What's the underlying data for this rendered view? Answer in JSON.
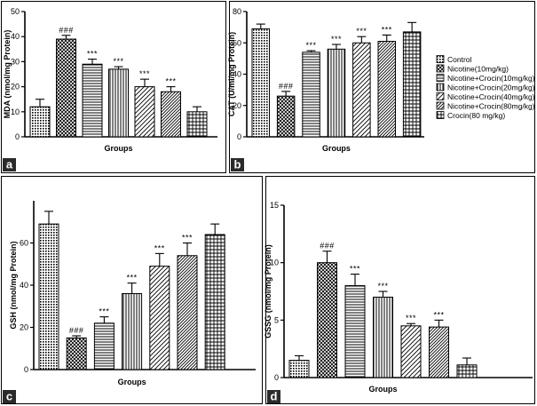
{
  "colors": {
    "background": "#ffffff",
    "ink": "#000000",
    "panel_label_bg": "#2b2b2b"
  },
  "legend": {
    "entries": [
      "Control",
      "Nicotine(10mg/kg)",
      "Nicotine+Crocin(10mg/kg)",
      "Nicotine+Crocin(20mg/kg)",
      "Nicotine+Crocin(40mg/kg)",
      "Nicotine+Crocin(80mg/kg)",
      "Crocin(80 mg/kg)"
    ],
    "patterns": [
      "dots",
      "crosshatch",
      "hlines",
      "vlines",
      "diag",
      "diag-dense",
      "grid"
    ]
  },
  "chart_data": [
    {
      "panel": "a",
      "type": "bar",
      "title": "",
      "xlabel": "Groups",
      "ylabel": "MDA (nmol/mg Protein)",
      "ylim": [
        0,
        50
      ],
      "yticks": [
        0,
        10,
        20,
        30,
        40,
        50
      ],
      "categories": [
        "Control",
        "Nicotine(10mg/kg)",
        "Nicotine+Crocin(10mg/kg)",
        "Nicotine+Crocin(20mg/kg)",
        "Nicotine+Crocin(40mg/kg)",
        "Nicotine+Crocin(80mg/kg)",
        "Crocin(80 mg/kg)"
      ],
      "values": [
        12,
        39,
        29,
        27,
        20,
        18,
        10
      ],
      "errors": [
        3,
        1.5,
        2,
        1,
        3,
        2,
        2
      ],
      "annotations": [
        "",
        "###",
        "***",
        "***",
        "***",
        "***",
        ""
      ]
    },
    {
      "panel": "b",
      "type": "bar",
      "title": "",
      "xlabel": "Groups",
      "ylabel": "CAT (U/ml/mg Protein)",
      "ylim": [
        0,
        80
      ],
      "yticks": [
        0,
        20,
        40,
        60,
        80
      ],
      "categories": [
        "Control",
        "Nicotine(10mg/kg)",
        "Nicotine+Crocin(10mg/kg)",
        "Nicotine+Crocin(20mg/kg)",
        "Nicotine+Crocin(40mg/kg)",
        "Nicotine+Crocin(80mg/kg)",
        "Crocin(80 mg/kg)"
      ],
      "values": [
        69,
        26,
        54,
        56,
        60,
        61,
        67
      ],
      "errors": [
        3,
        3,
        1,
        3,
        4,
        4,
        6
      ],
      "annotations": [
        "",
        "###",
        "***",
        "***",
        "***",
        "***",
        ""
      ]
    },
    {
      "panel": "c",
      "type": "bar",
      "title": "",
      "xlabel": "Groups",
      "ylabel": "GSH (nmol/mg Protein)",
      "ylim": [
        0,
        80
      ],
      "yticks": [
        0,
        20,
        40,
        60
      ],
      "categories": [
        "Control",
        "Nicotine(10mg/kg)",
        "Nicotine+Crocin(10mg/kg)",
        "Nicotine+Crocin(20mg/kg)",
        "Nicotine+Crocin(40mg/kg)",
        "Nicotine+Crocin(80mg/kg)",
        "Crocin(80 mg/kg)"
      ],
      "values": [
        69,
        15,
        22,
        36,
        49,
        54,
        64
      ],
      "errors": [
        6,
        1,
        3,
        5,
        6,
        6,
        5
      ],
      "annotations": [
        "",
        "###",
        "***",
        "***",
        "***",
        "***",
        ""
      ]
    },
    {
      "panel": "d",
      "type": "bar",
      "title": "",
      "xlabel": "Groups",
      "ylabel": "GSSG (nmol/mg Protein)",
      "ylim": [
        0,
        15
      ],
      "yticks": [
        0,
        5,
        10,
        15
      ],
      "categories": [
        "Control",
        "Nicotine(10mg/kg)",
        "Nicotine+Crocin(10mg/kg)",
        "Nicotine+Crocin(20mg/kg)",
        "Nicotine+Crocin(40mg/kg)",
        "Nicotine+Crocin(80mg/kg)",
        "Crocin(80 mg/kg)"
      ],
      "values": [
        1.5,
        10,
        8,
        7,
        4.5,
        4.4,
        1.1
      ],
      "errors": [
        0.4,
        1,
        1,
        0.5,
        0.2,
        0.6,
        0.6
      ],
      "annotations": [
        "",
        "###",
        "***",
        "***",
        "***",
        "***",
        ""
      ]
    }
  ]
}
